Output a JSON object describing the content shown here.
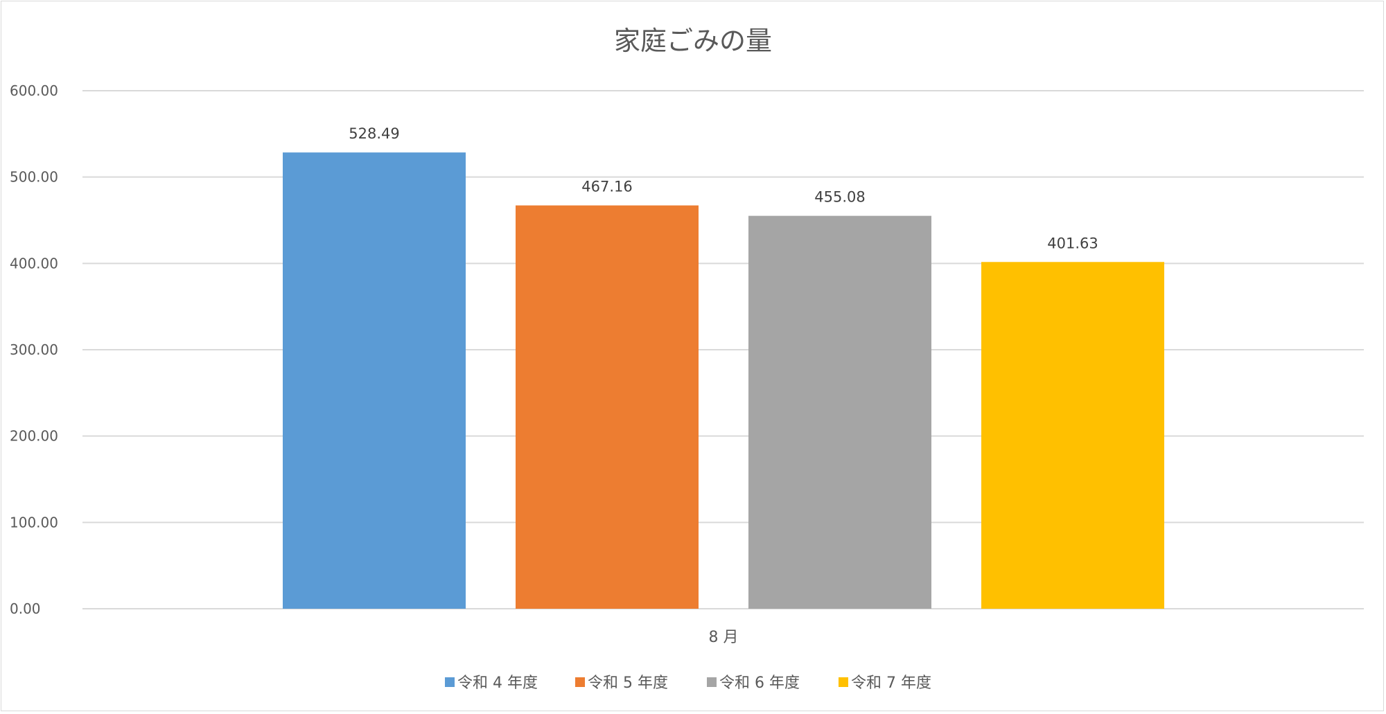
{
  "chart_data": {
    "type": "bar",
    "title": "家庭ごみの量",
    "categories": [
      "8 月"
    ],
    "series": [
      {
        "name": "令和 4 年度",
        "values": [
          528.49
        ],
        "label": "528.49",
        "color": "#5b9bd5"
      },
      {
        "name": "令和 5 年度",
        "values": [
          467.16
        ],
        "label": "467.16",
        "color": "#ed7d31"
      },
      {
        "name": "令和 6 年度",
        "values": [
          455.08
        ],
        "label": "455.08",
        "color": "#a5a5a5"
      },
      {
        "name": "令和 7 年度",
        "values": [
          401.63
        ],
        "label": "401.63",
        "color": "#ffc000"
      }
    ],
    "xlabel": "",
    "ylabel": "",
    "ylim": [
      0,
      600
    ],
    "yticks": [
      "0.00",
      "100.00",
      "200.00",
      "300.00",
      "400.00",
      "500.00",
      "600.00"
    ],
    "grid": true,
    "legend": "bottom"
  }
}
